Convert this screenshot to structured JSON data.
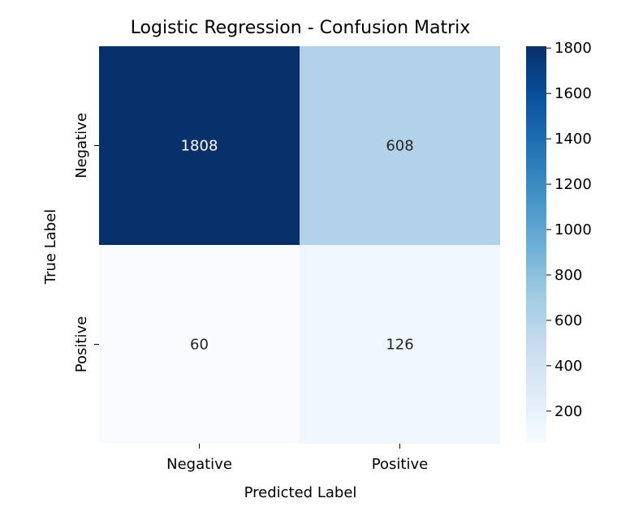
{
  "chart_data": {
    "type": "heatmap",
    "title": "Logistic Regression - Confusion Matrix",
    "xlabel": "Predicted Label",
    "ylabel": "True Label",
    "x_categories": [
      "Negative",
      "Positive"
    ],
    "y_categories": [
      "Negative",
      "Positive"
    ],
    "values": [
      [
        1808,
        608
      ],
      [
        60,
        126
      ]
    ],
    "colormap": "Blues",
    "colorbar": {
      "ticks": [
        200,
        400,
        600,
        800,
        1000,
        1200,
        1400,
        1600,
        1800
      ],
      "range": [
        60,
        1808
      ]
    },
    "annotation_colors": {
      "dark_cell_text": "#ffffff",
      "light_cell_text": "#262626"
    }
  }
}
